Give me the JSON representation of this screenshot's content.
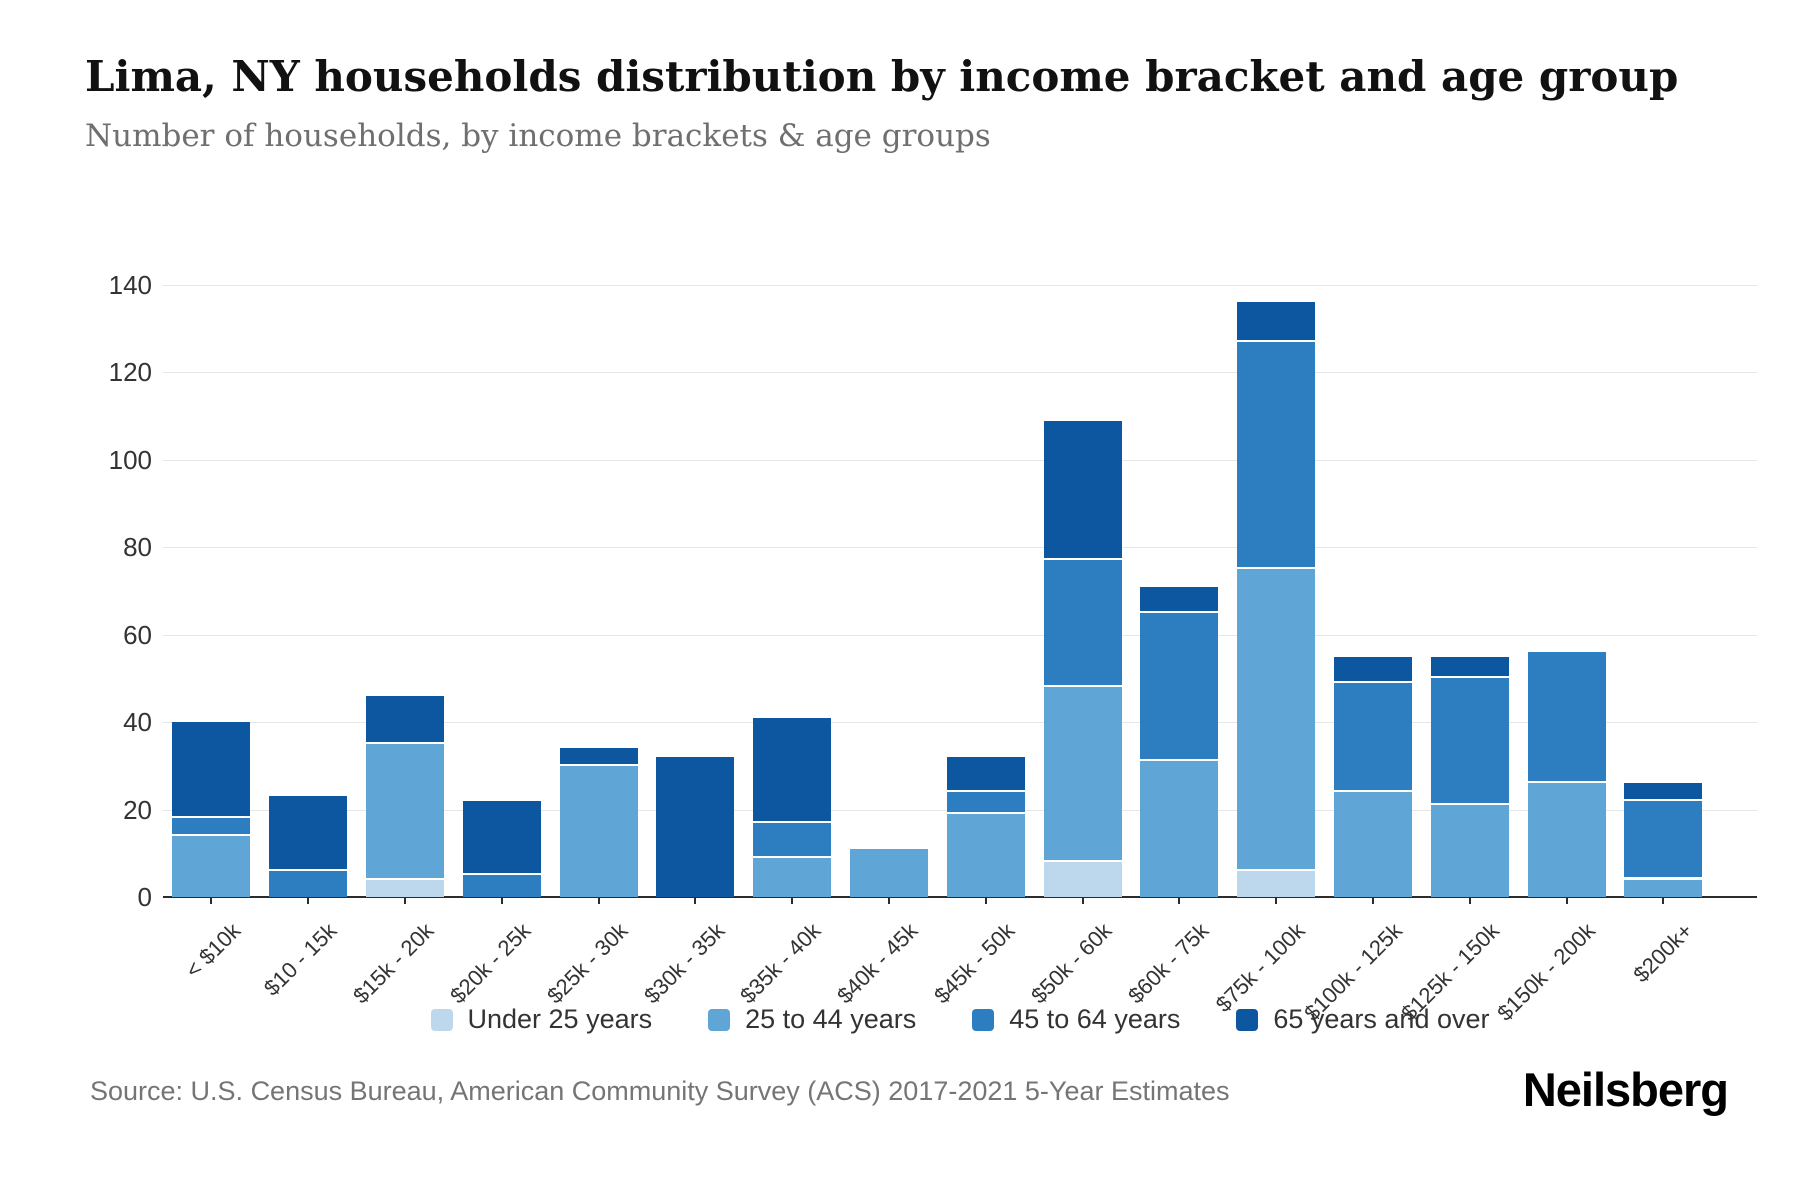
{
  "header": {
    "title": "Lima, NY households distribution by income bracket and age group",
    "subtitle": "Number of households, by income brackets & age groups"
  },
  "footer": {
    "source": "Source: U.S. Census Bureau, American Community Survey (ACS) 2017-2021 5-Year Estimates",
    "logo": "Neilsberg"
  },
  "chart_data": {
    "type": "bar",
    "stacked": true,
    "title": "Lima, NY households distribution by income bracket and age group",
    "subtitle": "Number of households, by income brackets & age groups",
    "xlabel": "",
    "ylabel": "",
    "ylim": [
      0,
      140
    ],
    "yticks": [
      0,
      20,
      40,
      60,
      80,
      100,
      120,
      140
    ],
    "grid": true,
    "legend_position": "bottom",
    "categories": [
      "< $10k",
      "$10 - 15k",
      "$15k - 20k",
      "$20k - 25k",
      "$25k - 30k",
      "$30k - 35k",
      "$35k - 40k",
      "$40k - 45k",
      "$45k - 50k",
      "$50k - 60k",
      "$60k - 75k",
      "$75k - 100k",
      "$100k - 125k",
      "$125k - 150k",
      "$150k - 200k",
      "$200k+"
    ],
    "series": [
      {
        "name": "Under 25 years",
        "color": "#bdd8ec",
        "values": [
          0,
          0,
          4,
          0,
          0,
          0,
          0,
          0,
          0,
          8,
          0,
          6,
          0,
          0,
          0,
          0
        ]
      },
      {
        "name": "25 to 44 years",
        "color": "#5fa5d6",
        "values": [
          14,
          0,
          31,
          0,
          30,
          0,
          9,
          11,
          19,
          40,
          31,
          69,
          24,
          21,
          26,
          4
        ]
      },
      {
        "name": "45 to 64 years",
        "color": "#2d7ec0",
        "values": [
          4,
          6,
          0,
          5,
          0,
          0,
          8,
          0,
          5,
          29,
          34,
          52,
          25,
          29,
          30,
          18
        ]
      },
      {
        "name": "65 years and over",
        "color": "#0d56a0",
        "values": [
          22,
          17,
          11,
          17,
          4,
          32,
          24,
          0,
          8,
          32,
          6,
          9,
          6,
          5,
          0,
          4
        ]
      }
    ],
    "totals": [
      40,
      23,
      46,
      22,
      34,
      32,
      41,
      11,
      32,
      109,
      71,
      136,
      55,
      55,
      56,
      26
    ],
    "colors": {
      "grid": "#e6e6e6",
      "axis": "#2c2c2c",
      "tick_label": "#333333",
      "subtitle_text": "#6f6f6f",
      "source_text": "#757575"
    }
  }
}
